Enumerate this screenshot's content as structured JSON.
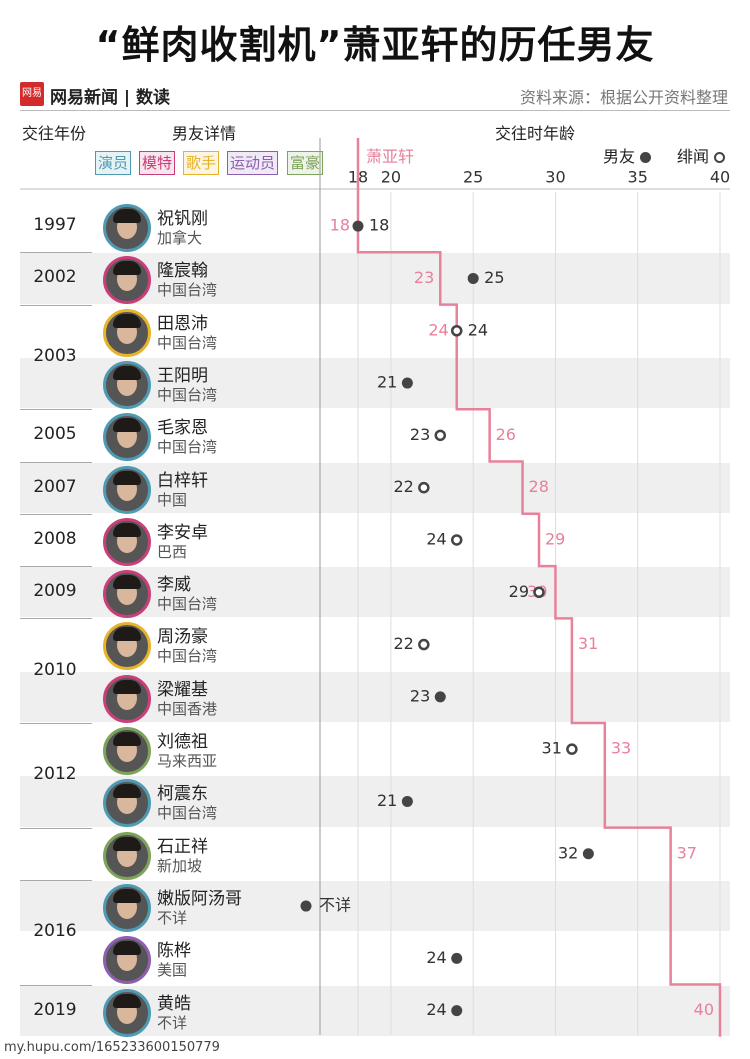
{
  "title": "“鲜肉收割机”萧亚轩的历任男友",
  "source": {
    "logo_text": "网易",
    "brand": "网易新闻",
    "column": "数读",
    "note": "资料来源：根据公开资料整理"
  },
  "headers": {
    "year": "交往年份",
    "details": "男友详情",
    "age": "交往时年龄",
    "subject": "萧亚轩",
    "boyfriend": "男友",
    "rumor": "绯闻"
  },
  "categories": [
    {
      "label": "演员",
      "color": "#4e9ab3"
    },
    {
      "label": "模特",
      "color": "#c83f7a"
    },
    {
      "label": "歌手",
      "color": "#e7b32a"
    },
    {
      "label": "运动员",
      "color": "#8c5fb0"
    },
    {
      "label": "富豪",
      "color": "#7ea35a"
    }
  ],
  "colors": {
    "subject_line": "#e8819a",
    "subject_text": "#e8819a",
    "dot": "#444444"
  },
  "chart_data": {
    "type": "scatter",
    "x_ticks": [
      18,
      20,
      25,
      30,
      35,
      40
    ],
    "x_range": [
      18,
      40
    ],
    "series": [
      {
        "name": "萧亚轩",
        "values": [
          18,
          23,
          24,
          24,
          26,
          28,
          29,
          30,
          31,
          31,
          33,
          33,
          37,
          37,
          37,
          40
        ]
      },
      {
        "name": "男友",
        "values": [
          18,
          25,
          24,
          21,
          23,
          22,
          24,
          29,
          22,
          23,
          31,
          21,
          32,
          null,
          24,
          24
        ]
      }
    ],
    "rows": [
      {
        "year": "1997",
        "name": "祝钒刚",
        "origin": "加拿大",
        "cat": 0,
        "subject_age": 18,
        "subject_label": "18",
        "bf_age": 18,
        "bf_label": "18",
        "rumor": false
      },
      {
        "year": "2002",
        "name": "隆宸翰",
        "origin": "中国台湾",
        "cat": 1,
        "subject_age": 23,
        "subject_label": "23",
        "bf_age": 25,
        "bf_label": "25",
        "rumor": false
      },
      {
        "year": "2003",
        "name": "田恩沛",
        "origin": "中国台湾",
        "cat": 2,
        "subject_age": 24,
        "subject_label": "24",
        "bf_age": 24,
        "bf_label": "24",
        "rumor": true
      },
      {
        "year": "",
        "name": "王阳明",
        "origin": "中国台湾",
        "cat": 0,
        "subject_age": 24,
        "subject_label": "",
        "bf_age": 21,
        "bf_label": "21",
        "rumor": false
      },
      {
        "year": "2005",
        "name": "毛家恩",
        "origin": "中国台湾",
        "cat": 0,
        "subject_age": 26,
        "subject_label": "26",
        "bf_age": 23,
        "bf_label": "23",
        "rumor": true
      },
      {
        "year": "2007",
        "name": "白梓轩",
        "origin": "中国",
        "cat": 0,
        "subject_age": 28,
        "subject_label": "28",
        "bf_age": 22,
        "bf_label": "22",
        "rumor": true
      },
      {
        "year": "2008",
        "name": "李安卓",
        "origin": "巴西",
        "cat": 1,
        "subject_age": 29,
        "subject_label": "29",
        "bf_age": 24,
        "bf_label": "24",
        "rumor": true
      },
      {
        "year": "2009",
        "name": "李威",
        "origin": "中国台湾",
        "cat": 1,
        "subject_age": 30,
        "subject_label": "30",
        "bf_age": 29,
        "bf_label": "29",
        "rumor": true
      },
      {
        "year": "2010",
        "name": "周汤豪",
        "origin": "中国台湾",
        "cat": 2,
        "subject_age": 31,
        "subject_label": "31",
        "bf_age": 22,
        "bf_label": "22",
        "rumor": true
      },
      {
        "year": "",
        "name": "梁耀基",
        "origin": "中国香港",
        "cat": 1,
        "subject_age": 31,
        "subject_label": "",
        "bf_age": 23,
        "bf_label": "23",
        "rumor": false
      },
      {
        "year": "2012",
        "name": "刘德祖",
        "origin": "马来西亚",
        "cat": 4,
        "subject_age": 33,
        "subject_label": "33",
        "bf_age": 31,
        "bf_label": "31",
        "rumor": true
      },
      {
        "year": "",
        "name": "柯震东",
        "origin": "中国台湾",
        "cat": 0,
        "subject_age": 33,
        "subject_label": "",
        "bf_age": 21,
        "bf_label": "21",
        "rumor": false
      },
      {
        "year": "",
        "name": "石正祥",
        "origin": "新加坡",
        "cat": 4,
        "subject_age": 37,
        "subject_label": "37",
        "bf_age": 32,
        "bf_label": "32",
        "rumor": false
      },
      {
        "year": "2016",
        "name": "嫩版阿汤哥",
        "origin": "不详",
        "cat": 0,
        "subject_age": 37,
        "subject_label": "",
        "bf_age": null,
        "bf_label": "不详",
        "rumor": false
      },
      {
        "year": "",
        "name": "陈桦",
        "origin": "美国",
        "cat": 3,
        "subject_age": 37,
        "subject_label": "",
        "bf_age": 24,
        "bf_label": "24",
        "rumor": false
      },
      {
        "year": "2019",
        "name": "黄皓",
        "origin": "不详",
        "cat": 0,
        "subject_age": 40,
        "subject_label": "40",
        "bf_age": 24,
        "bf_label": "24",
        "rumor": false
      }
    ]
  },
  "footer": "my.hupu.com/165233600150779"
}
